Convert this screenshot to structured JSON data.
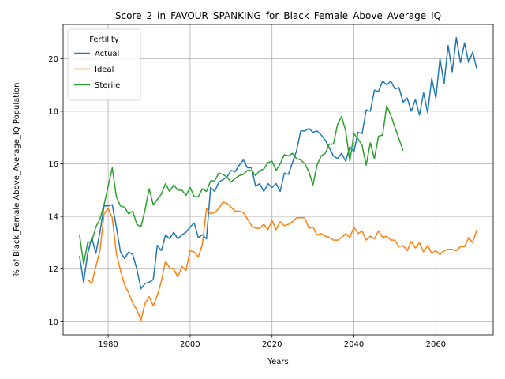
{
  "chart_data": {
    "type": "line",
    "title": "Score_2_in_FAVOUR_SPANKING_for_Black_Female_Above_Average_IQ",
    "xlabel": "Years",
    "ylabel": "% of Black_Female Above_Average_IQ Population",
    "xlim": [
      1969,
      2074
    ],
    "ylim": [
      9.5,
      21.3
    ],
    "xticks": [
      1980,
      2000,
      2020,
      2040,
      2060
    ],
    "yticks": [
      10,
      12,
      14,
      16,
      18,
      20
    ],
    "grid": true,
    "legend": {
      "title": "Fertility",
      "placement": "top-left"
    },
    "colors": {
      "Actual": "#1f77b4",
      "Ideal": "#ff7f0e",
      "Sterile": "#2ca02c"
    },
    "series": [
      {
        "name": "Actual",
        "x": [
          1973,
          1974,
          1975,
          1976,
          1977,
          1978,
          1979,
          1980,
          1981,
          1982,
          1983,
          1984,
          1985,
          1986,
          1987,
          1988,
          1989,
          1990,
          1991,
          1992,
          1993,
          1994,
          1995,
          1996,
          1997,
          1998,
          1999,
          2000,
          2001,
          2002,
          2003,
          2004,
          2005,
          2006,
          2007,
          2008,
          2009,
          2010,
          2011,
          2012,
          2013,
          2014,
          2015,
          2016,
          2017,
          2018,
          2019,
          2020,
          2021,
          2022,
          2023,
          2024,
          2025,
          2026,
          2027,
          2028,
          2029,
          2030,
          2031,
          2032,
          2033,
          2034,
          2035,
          2036,
          2037,
          2038,
          2039,
          2040,
          2041,
          2042,
          2043,
          2044,
          2045,
          2046,
          2047,
          2048,
          2049,
          2050,
          2051,
          2052,
          2053,
          2054,
          2055,
          2056,
          2057,
          2058,
          2059,
          2060,
          2061,
          2062,
          2063,
          2064,
          2065,
          2066,
          2067,
          2068,
          2069,
          2070
        ],
        "y": [
          12.5,
          11.5,
          12.6,
          13.2,
          12.6,
          13.4,
          14.4,
          14.4,
          14.45,
          13.6,
          12.65,
          12.4,
          12.65,
          12.55,
          12.0,
          11.25,
          11.45,
          11.5,
          11.6,
          12.9,
          12.7,
          13.3,
          13.15,
          13.4,
          13.15,
          13.3,
          13.4,
          13.6,
          13.75,
          13.2,
          13.3,
          13.15,
          15.1,
          14.95,
          15.3,
          15.4,
          15.5,
          15.75,
          15.7,
          15.95,
          16.15,
          15.85,
          15.85,
          15.15,
          15.25,
          14.95,
          15.25,
          15.1,
          15.25,
          14.95,
          15.65,
          15.6,
          16.05,
          16.5,
          17.25,
          17.25,
          17.35,
          17.2,
          17.25,
          17.1,
          16.9,
          16.6,
          16.3,
          16.2,
          16.4,
          16.1,
          16.65,
          16.45,
          17.2,
          17.15,
          18.05,
          18.0,
          18.8,
          18.75,
          19.15,
          19.0,
          19.15,
          18.85,
          18.9,
          18.35,
          18.5,
          18.0,
          18.45,
          17.85,
          18.7,
          17.95,
          19.25,
          18.5,
          20.0,
          19.05,
          20.5,
          19.5,
          20.8,
          19.85,
          20.6,
          19.85,
          20.25,
          19.6
        ]
      },
      {
        "name": "Ideal",
        "x": [
          1975,
          1976,
          1977,
          1978,
          1979,
          1980,
          1981,
          1982,
          1983,
          1984,
          1985,
          1986,
          1987,
          1988,
          1989,
          1990,
          1991,
          1992,
          1993,
          1994,
          1995,
          1996,
          1997,
          1998,
          1999,
          2000,
          2001,
          2002,
          2003,
          2004,
          2005,
          2006,
          2007,
          2008,
          2009,
          2010,
          2011,
          2012,
          2013,
          2014,
          2015,
          2016,
          2017,
          2018,
          2019,
          2020,
          2021,
          2022,
          2023,
          2024,
          2025,
          2026,
          2027,
          2028,
          2029,
          2030,
          2031,
          2032,
          2033,
          2034,
          2035,
          2036,
          2037,
          2038,
          2039,
          2040,
          2041,
          2042,
          2043,
          2044,
          2045,
          2046,
          2047,
          2048,
          2049,
          2050,
          2051,
          2052,
          2053,
          2054,
          2055,
          2056,
          2057,
          2058,
          2059,
          2060,
          2061,
          2062,
          2063,
          2064,
          2065,
          2066,
          2067,
          2068,
          2069,
          2070
        ],
        "y": [
          11.6,
          11.45,
          12.1,
          12.7,
          14.1,
          14.3,
          13.95,
          12.6,
          11.95,
          11.4,
          11.1,
          10.7,
          10.45,
          10.05,
          10.7,
          10.95,
          10.6,
          11.0,
          11.55,
          12.3,
          12.05,
          12.0,
          11.7,
          12.1,
          11.95,
          12.7,
          12.65,
          12.45,
          12.95,
          14.3,
          14.1,
          14.15,
          14.3,
          14.55,
          14.5,
          14.35,
          14.2,
          14.2,
          14.15,
          13.9,
          13.65,
          13.55,
          13.55,
          13.7,
          13.5,
          13.85,
          13.5,
          13.8,
          13.65,
          13.7,
          13.8,
          13.95,
          13.95,
          13.95,
          13.55,
          13.6,
          13.3,
          13.35,
          13.25,
          13.2,
          13.1,
          13.1,
          13.2,
          13.35,
          13.2,
          13.6,
          13.35,
          13.45,
          13.1,
          13.25,
          13.15,
          13.45,
          13.2,
          13.25,
          13.1,
          13.1,
          12.85,
          12.9,
          12.7,
          13.05,
          12.8,
          13.0,
          12.65,
          12.9,
          12.6,
          12.7,
          12.55,
          12.7,
          12.75,
          12.75,
          12.7,
          12.85,
          12.85,
          13.2,
          13.0,
          13.5
        ]
      },
      {
        "name": "Sterile",
        "x": [
          1973,
          1974,
          1975,
          1976,
          1977,
          1978,
          1979,
          1980,
          1981,
          1982,
          1983,
          1984,
          1985,
          1986,
          1987,
          1988,
          1989,
          1990,
          1991,
          1992,
          1993,
          1994,
          1995,
          1996,
          1997,
          1998,
          1999,
          2000,
          2001,
          2002,
          2003,
          2004,
          2005,
          2006,
          2007,
          2008,
          2009,
          2010,
          2011,
          2012,
          2013,
          2014,
          2015,
          2016,
          2017,
          2018,
          2019,
          2020,
          2021,
          2022,
          2023,
          2024,
          2025,
          2026,
          2027,
          2028,
          2029,
          2030,
          2031,
          2032,
          2033,
          2034,
          2035,
          2036,
          2037,
          2038,
          2039,
          2040,
          2041,
          2042,
          2043,
          2044,
          2045,
          2046,
          2047,
          2048,
          2049,
          2050,
          2051,
          2052
        ],
        "y": [
          13.3,
          12.2,
          13.0,
          13.05,
          13.6,
          13.9,
          14.45,
          15.15,
          15.85,
          14.75,
          14.4,
          14.35,
          14.1,
          14.2,
          13.7,
          13.6,
          14.25,
          15.05,
          14.45,
          14.65,
          14.85,
          15.25,
          14.95,
          15.2,
          15.0,
          15.0,
          14.8,
          15.1,
          14.75,
          14.75,
          15.05,
          14.95,
          15.35,
          15.35,
          15.65,
          15.6,
          15.5,
          15.3,
          15.45,
          15.55,
          15.6,
          15.75,
          15.75,
          15.55,
          15.75,
          15.8,
          16.05,
          16.1,
          15.75,
          16.0,
          16.35,
          16.3,
          16.4,
          16.2,
          16.15,
          16.0,
          15.7,
          15.2,
          15.95,
          16.3,
          16.4,
          16.75,
          16.75,
          17.5,
          17.8,
          17.25,
          16.1,
          17.15,
          16.95,
          16.7,
          15.95,
          16.8,
          16.2,
          17.05,
          17.1,
          18.2,
          17.85,
          17.4,
          16.95,
          16.5
        ]
      }
    ]
  }
}
